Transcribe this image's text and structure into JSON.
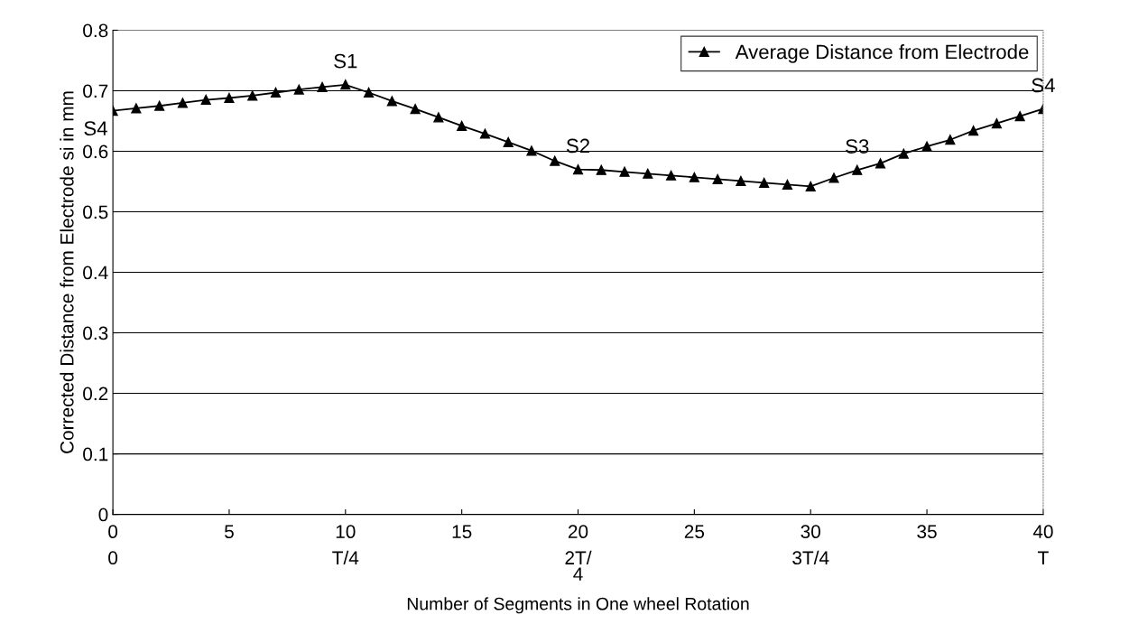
{
  "chart_data": {
    "type": "line",
    "xlabel": "Number of Segments in One wheel Rotation",
    "ylabel": "Corrected Distance from Electrode si in mm",
    "x": [
      0,
      1,
      2,
      3,
      4,
      5,
      6,
      7,
      8,
      9,
      10,
      11,
      12,
      13,
      14,
      15,
      16,
      17,
      18,
      19,
      20,
      21,
      22,
      23,
      24,
      25,
      26,
      27,
      28,
      29,
      30,
      31,
      32,
      33,
      34,
      35,
      36,
      37,
      38,
      39,
      40
    ],
    "series": [
      {
        "name": "Average Distance from Electrode",
        "color": "#000000",
        "values": [
          0.667,
          0.671,
          0.675,
          0.68,
          0.685,
          0.688,
          0.692,
          0.697,
          0.702,
          0.706,
          0.71,
          0.697,
          0.683,
          0.67,
          0.656,
          0.642,
          0.629,
          0.615,
          0.601,
          0.584,
          0.57,
          0.569,
          0.566,
          0.563,
          0.56,
          0.557,
          0.554,
          0.551,
          0.548,
          0.545,
          0.542,
          0.556,
          0.569,
          0.58,
          0.596,
          0.608,
          0.619,
          0.634,
          0.646,
          0.658,
          0.67
        ]
      }
    ],
    "xlim": [
      0,
      40
    ],
    "xticks": [
      0,
      5,
      10,
      15,
      20,
      25,
      30,
      35,
      40
    ],
    "ylim": [
      0,
      0.8
    ],
    "yticks": [
      0,
      0.1,
      0.2,
      0.3,
      0.4,
      0.5,
      0.6,
      0.7,
      0.8
    ],
    "annotations": [
      "0",
      "T/4",
      "2T/\n4",
      "3T/4",
      "T",
      {
        "text": "S4",
        "x": 0,
        "y": 0.667
      },
      {
        "text": "S1",
        "x": 10,
        "y": 0.71
      },
      {
        "text": "S2",
        "x": 20,
        "y": 0.57
      },
      {
        "text": "S3",
        "x": 32,
        "y": 0.569
      },
      {
        "text": "S4",
        "x": 40,
        "y": 0.67
      }
    ],
    "grid": "y",
    "legend": "top right",
    "marker": "triangle",
    "line_style": "solid"
  }
}
